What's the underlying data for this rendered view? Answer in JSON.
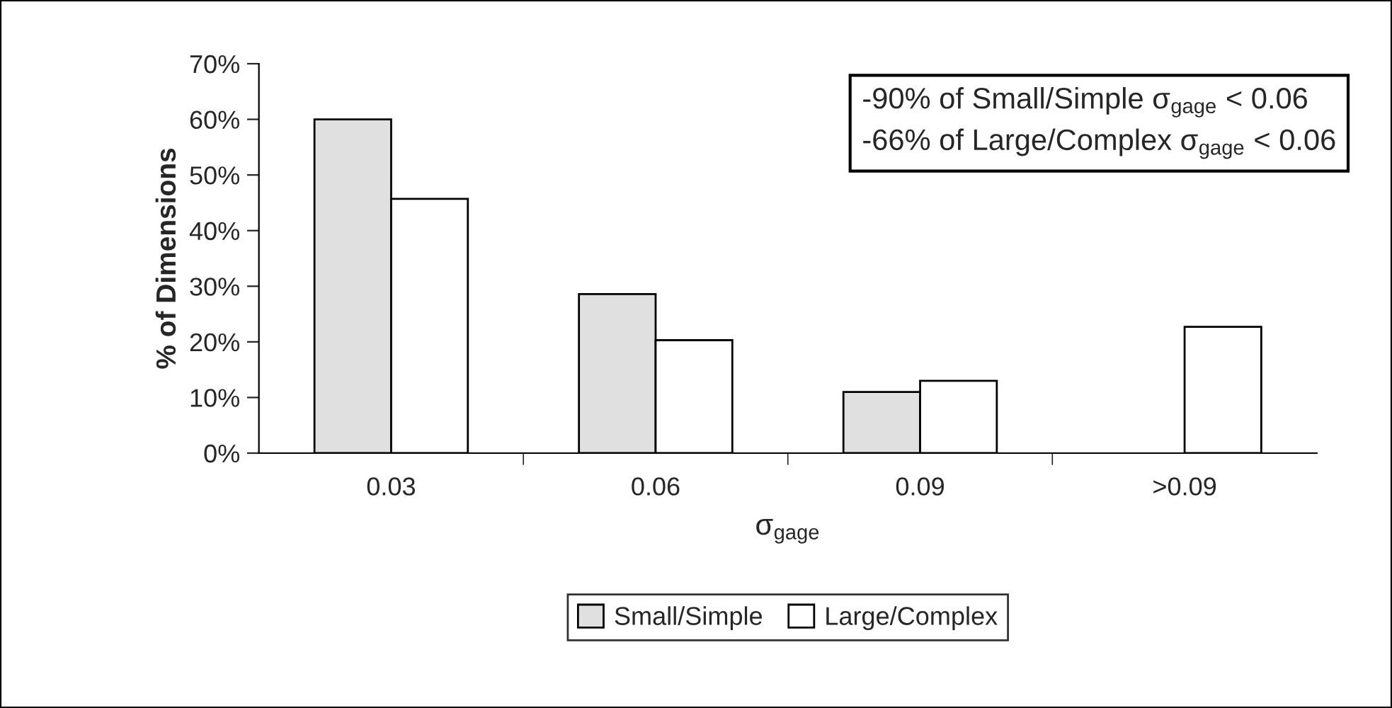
{
  "chart_data": {
    "type": "bar",
    "categories": [
      "0.03",
      "0.06",
      "0.09",
      ">0.09"
    ],
    "series": [
      {
        "name": "Small/Simple",
        "color": "#e0e0e0",
        "values": [
          60,
          28.6,
          11,
          null
        ]
      },
      {
        "name": "Large/Complex",
        "color": "#ffffff",
        "values": [
          45.7,
          20.3,
          13,
          22.7
        ]
      }
    ],
    "xlabel": "σ$_{gage}$",
    "ylabel": "% of Dimensions",
    "ylim": [
      0,
      70
    ],
    "yticks": [
      {
        "value": 0,
        "label": "0%"
      },
      {
        "value": 10,
        "label": "10%"
      },
      {
        "value": 20,
        "label": "20%"
      },
      {
        "value": 30,
        "label": "30%"
      },
      {
        "value": 40,
        "label": "40%"
      },
      {
        "value": 50,
        "label": "50%"
      },
      {
        "value": 60,
        "label": "60%"
      },
      {
        "value": 70,
        "label": "70%"
      }
    ],
    "annotations": [
      "-90% of Small/Simple σ$_{gage}$ < 0.06",
      "-66% of Large/Complex σ$_{gage}$ < 0.06"
    ],
    "legend": "bottom",
    "grid": false
  }
}
